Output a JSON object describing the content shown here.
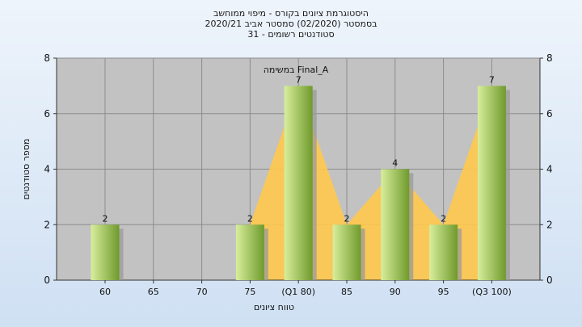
{
  "chart_data": {
    "type": "bar",
    "title_lines": [
      "היסטוגרמת ציונים בקורס - מיפוי ממוחשב",
      "בסמסטר  (02/2020)  סמסטר אביב 2020/21",
      "31 - סטודנטים רשומים"
    ],
    "xlabel": "טווח ציונים",
    "ylabel": "מספר סטודנטים",
    "annotation": "במשימה Final_A",
    "categories": [
      "60",
      "65",
      "70",
      "75",
      "(Q1 80)",
      "85",
      "90",
      "95",
      "(Q3 100)"
    ],
    "values": [
      2,
      0,
      0,
      2,
      7,
      2,
      4,
      2,
      7
    ],
    "value_labels": [
      "2",
      "",
      "",
      "2",
      "7",
      "2",
      "4",
      "2",
      "7"
    ],
    "ylim": [
      0,
      8
    ],
    "yticks": [
      0,
      2,
      4,
      6,
      8
    ],
    "grid": true,
    "colors": {
      "bar_light": "#d8ee9c",
      "bar_dark": "#6f9a2c",
      "area_fill": "#ffc94d",
      "plot_bg": "#c2c2c2",
      "grid": "#8c8c8c",
      "shadow": "#9a9a9a"
    }
  }
}
